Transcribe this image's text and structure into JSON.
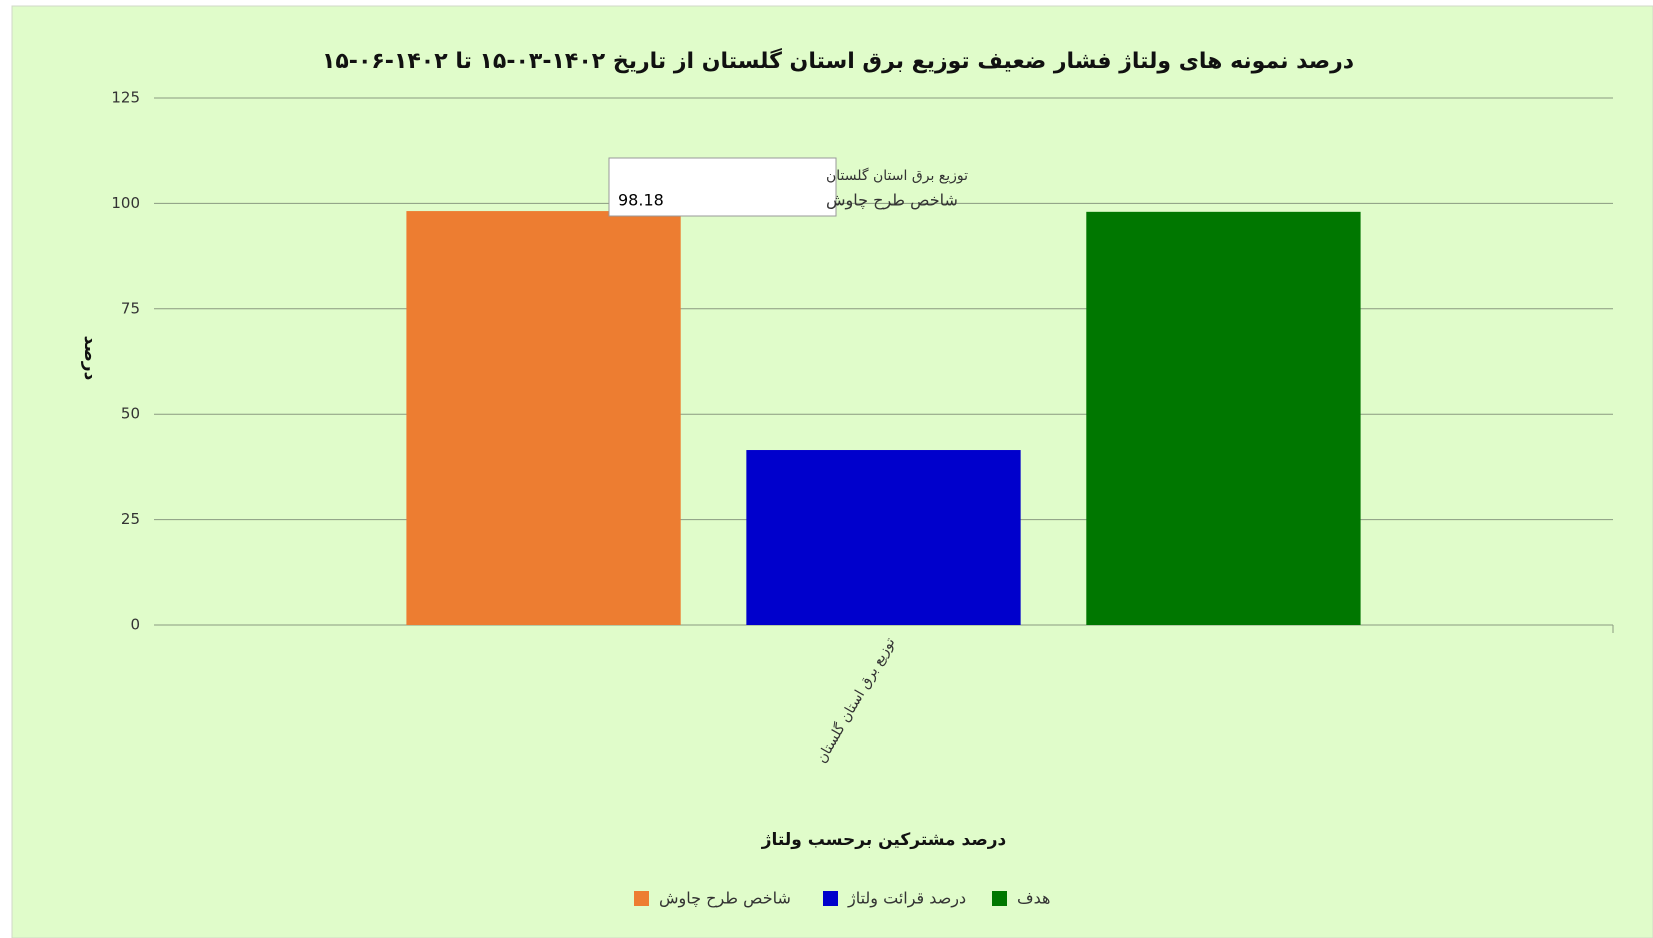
{
  "chart_data": {
    "type": "bar",
    "title": "درصد نمونه های ولتاژ فشار ضعیف توزیع برق استان گلستان از تاریخ ۱۴۰۲-۰۳-۱۵ تا ۱۴۰۲-۰۶-۱۵",
    "x_label": "درصد مشترکین برحسب ولتاژ",
    "y_label": "درصد",
    "categories": [
      "توزیع برق استان گلستان"
    ],
    "series": [
      {
        "name": "شاخص طرح چاوش",
        "color": "#ed7d31",
        "values": [
          98.18
        ]
      },
      {
        "name": "درصد قرائت ولتاژ",
        "color": "#0000cc",
        "values": [
          41.5
        ]
      },
      {
        "name": "هدف",
        "color": "#007700",
        "values": [
          98
        ]
      }
    ],
    "ylim": [
      0,
      125
    ],
    "yticks": [
      0,
      25,
      50,
      75,
      100,
      125
    ],
    "grid": true,
    "legend": "bottom"
  }
}
